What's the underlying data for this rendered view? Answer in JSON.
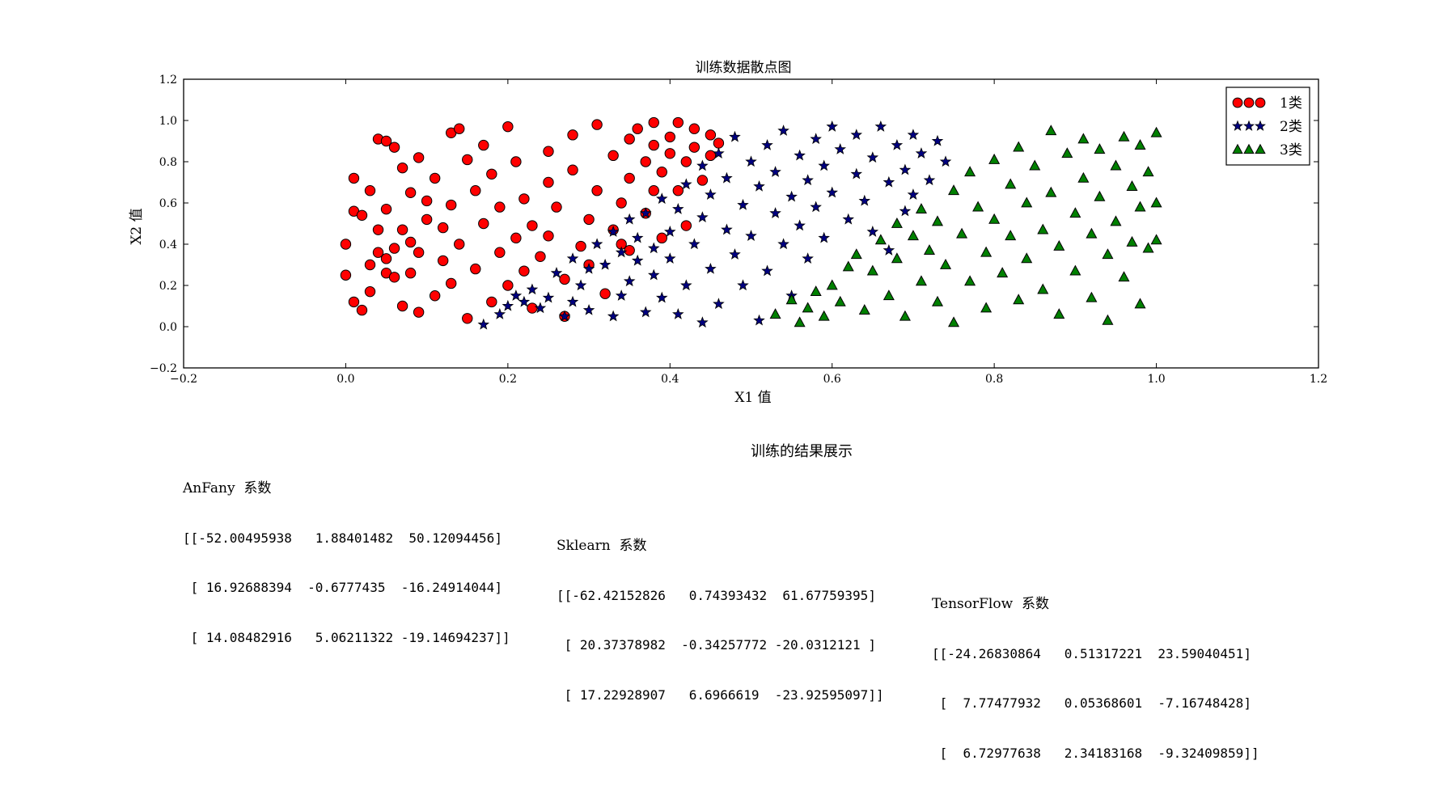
{
  "chart_data": {
    "type": "scatter",
    "title": "训练数据散点图",
    "xlabel": "X1 值",
    "ylabel": "X2 值",
    "xlim": [
      -0.2,
      1.2
    ],
    "ylim": [
      -0.2,
      1.2
    ],
    "xticks": [
      "−0.2",
      "0.0",
      "0.2",
      "0.4",
      "0.6",
      "0.8",
      "1.0",
      "1.2"
    ],
    "yticks": [
      "−0.2",
      "0.0",
      "0.2",
      "0.4",
      "0.6",
      "0.8",
      "1.0",
      "1.2"
    ],
    "xtick_values": [
      -0.2,
      0.0,
      0.2,
      0.4,
      0.6,
      0.8,
      1.0,
      1.2
    ],
    "ytick_values": [
      -0.2,
      0.0,
      0.2,
      0.4,
      0.6,
      0.8,
      1.0,
      1.2
    ],
    "legend_position": "top-right",
    "grid": false,
    "series": [
      {
        "name": "1类",
        "marker": "circle",
        "color": "#ff0000",
        "points": [
          [
            0.0,
            0.4
          ],
          [
            0.01,
            0.12
          ],
          [
            0.01,
            0.56
          ],
          [
            0.01,
            0.72
          ],
          [
            0.0,
            0.25
          ],
          [
            0.02,
            0.54
          ],
          [
            0.02,
            0.08
          ],
          [
            0.03,
            0.17
          ],
          [
            0.03,
            0.3
          ],
          [
            0.03,
            0.66
          ],
          [
            0.04,
            0.91
          ],
          [
            0.04,
            0.47
          ],
          [
            0.04,
            0.36
          ],
          [
            0.05,
            0.9
          ],
          [
            0.05,
            0.26
          ],
          [
            0.05,
            0.57
          ],
          [
            0.05,
            0.33
          ],
          [
            0.06,
            0.87
          ],
          [
            0.06,
            0.38
          ],
          [
            0.06,
            0.24
          ],
          [
            0.07,
            0.77
          ],
          [
            0.07,
            0.47
          ],
          [
            0.07,
            0.1
          ],
          [
            0.08,
            0.65
          ],
          [
            0.08,
            0.41
          ],
          [
            0.08,
            0.26
          ],
          [
            0.09,
            0.82
          ],
          [
            0.09,
            0.36
          ],
          [
            0.09,
            0.07
          ],
          [
            0.1,
            0.61
          ],
          [
            0.1,
            0.52
          ],
          [
            0.11,
            0.72
          ],
          [
            0.11,
            0.15
          ],
          [
            0.12,
            0.48
          ],
          [
            0.12,
            0.32
          ],
          [
            0.13,
            0.94
          ],
          [
            0.13,
            0.59
          ],
          [
            0.13,
            0.21
          ],
          [
            0.14,
            0.96
          ],
          [
            0.14,
            0.4
          ],
          [
            0.15,
            0.81
          ],
          [
            0.15,
            0.04
          ],
          [
            0.16,
            0.66
          ],
          [
            0.16,
            0.28
          ],
          [
            0.17,
            0.88
          ],
          [
            0.17,
            0.5
          ],
          [
            0.18,
            0.12
          ],
          [
            0.18,
            0.74
          ],
          [
            0.19,
            0.36
          ],
          [
            0.19,
            0.58
          ],
          [
            0.2,
            0.97
          ],
          [
            0.2,
            0.2
          ],
          [
            0.21,
            0.8
          ],
          [
            0.21,
            0.43
          ],
          [
            0.22,
            0.27
          ],
          [
            0.22,
            0.62
          ],
          [
            0.23,
            0.49
          ],
          [
            0.23,
            0.09
          ],
          [
            0.24,
            0.34
          ],
          [
            0.25,
            0.85
          ],
          [
            0.25,
            0.7
          ],
          [
            0.25,
            0.44
          ],
          [
            0.26,
            0.58
          ],
          [
            0.27,
            0.05
          ],
          [
            0.27,
            0.23
          ],
          [
            0.28,
            0.93
          ],
          [
            0.28,
            0.76
          ],
          [
            0.29,
            0.39
          ],
          [
            0.3,
            0.52
          ],
          [
            0.3,
            0.3
          ],
          [
            0.31,
            0.98
          ],
          [
            0.31,
            0.66
          ],
          [
            0.32,
            0.16
          ],
          [
            0.33,
            0.83
          ],
          [
            0.33,
            0.47
          ],
          [
            0.34,
            0.6
          ],
          [
            0.34,
            0.4
          ],
          [
            0.35,
            0.91
          ],
          [
            0.35,
            0.72
          ],
          [
            0.35,
            0.37
          ],
          [
            0.36,
            0.96
          ],
          [
            0.37,
            0.55
          ],
          [
            0.37,
            0.8
          ],
          [
            0.38,
            0.66
          ],
          [
            0.38,
            0.99
          ],
          [
            0.38,
            0.88
          ],
          [
            0.39,
            0.75
          ],
          [
            0.39,
            0.43
          ],
          [
            0.4,
            0.92
          ],
          [
            0.4,
            0.84
          ],
          [
            0.41,
            0.66
          ],
          [
            0.41,
            0.99
          ],
          [
            0.42,
            0.8
          ],
          [
            0.42,
            0.49
          ],
          [
            0.43,
            0.96
          ],
          [
            0.43,
            0.87
          ],
          [
            0.44,
            0.71
          ],
          [
            0.45,
            0.93
          ],
          [
            0.45,
            0.83
          ],
          [
            0.46,
            0.89
          ]
        ]
      },
      {
        "name": "2类",
        "marker": "star",
        "color": "#000080",
        "points": [
          [
            0.17,
            0.01
          ],
          [
            0.19,
            0.06
          ],
          [
            0.2,
            0.1
          ],
          [
            0.21,
            0.15
          ],
          [
            0.22,
            0.12
          ],
          [
            0.23,
            0.18
          ],
          [
            0.24,
            0.09
          ],
          [
            0.25,
            0.14
          ],
          [
            0.26,
            0.26
          ],
          [
            0.27,
            0.05
          ],
          [
            0.28,
            0.12
          ],
          [
            0.28,
            0.33
          ],
          [
            0.29,
            0.2
          ],
          [
            0.3,
            0.28
          ],
          [
            0.3,
            0.08
          ],
          [
            0.31,
            0.4
          ],
          [
            0.32,
            0.3
          ],
          [
            0.33,
            0.05
          ],
          [
            0.33,
            0.46
          ],
          [
            0.34,
            0.36
          ],
          [
            0.34,
            0.15
          ],
          [
            0.35,
            0.22
          ],
          [
            0.35,
            0.52
          ],
          [
            0.36,
            0.43
          ],
          [
            0.36,
            0.32
          ],
          [
            0.37,
            0.07
          ],
          [
            0.37,
            0.55
          ],
          [
            0.38,
            0.38
          ],
          [
            0.38,
            0.25
          ],
          [
            0.39,
            0.62
          ],
          [
            0.39,
            0.14
          ],
          [
            0.4,
            0.46
          ],
          [
            0.4,
            0.33
          ],
          [
            0.41,
            0.57
          ],
          [
            0.41,
            0.06
          ],
          [
            0.42,
            0.69
          ],
          [
            0.42,
            0.2
          ],
          [
            0.43,
            0.4
          ],
          [
            0.44,
            0.78
          ],
          [
            0.44,
            0.53
          ],
          [
            0.44,
            0.02
          ],
          [
            0.45,
            0.28
          ],
          [
            0.45,
            0.64
          ],
          [
            0.46,
            0.84
          ],
          [
            0.46,
            0.11
          ],
          [
            0.47,
            0.47
          ],
          [
            0.47,
            0.72
          ],
          [
            0.48,
            0.35
          ],
          [
            0.48,
            0.92
          ],
          [
            0.49,
            0.59
          ],
          [
            0.49,
            0.2
          ],
          [
            0.5,
            0.8
          ],
          [
            0.5,
            0.44
          ],
          [
            0.51,
            0.68
          ],
          [
            0.51,
            0.03
          ],
          [
            0.52,
            0.88
          ],
          [
            0.52,
            0.27
          ],
          [
            0.53,
            0.55
          ],
          [
            0.53,
            0.75
          ],
          [
            0.54,
            0.4
          ],
          [
            0.54,
            0.95
          ],
          [
            0.55,
            0.63
          ],
          [
            0.55,
            0.15
          ],
          [
            0.56,
            0.83
          ],
          [
            0.56,
            0.49
          ],
          [
            0.57,
            0.71
          ],
          [
            0.57,
            0.33
          ],
          [
            0.58,
            0.91
          ],
          [
            0.58,
            0.58
          ],
          [
            0.59,
            0.78
          ],
          [
            0.59,
            0.43
          ],
          [
            0.6,
            0.97
          ],
          [
            0.6,
            0.65
          ],
          [
            0.61,
            0.86
          ],
          [
            0.62,
            0.52
          ],
          [
            0.63,
            0.74
          ],
          [
            0.63,
            0.93
          ],
          [
            0.64,
            0.61
          ],
          [
            0.65,
            0.82
          ],
          [
            0.65,
            0.46
          ],
          [
            0.66,
            0.97
          ],
          [
            0.67,
            0.7
          ],
          [
            0.67,
            0.37
          ],
          [
            0.68,
            0.88
          ],
          [
            0.69,
            0.56
          ],
          [
            0.69,
            0.76
          ],
          [
            0.7,
            0.93
          ],
          [
            0.7,
            0.64
          ],
          [
            0.71,
            0.84
          ],
          [
            0.72,
            0.71
          ],
          [
            0.73,
            0.9
          ],
          [
            0.74,
            0.8
          ]
        ]
      },
      {
        "name": "3类",
        "marker": "triangle",
        "color": "#008000",
        "points": [
          [
            0.53,
            0.06
          ],
          [
            0.55,
            0.13
          ],
          [
            0.56,
            0.02
          ],
          [
            0.57,
            0.09
          ],
          [
            0.58,
            0.17
          ],
          [
            0.59,
            0.05
          ],
          [
            0.6,
            0.2
          ],
          [
            0.61,
            0.12
          ],
          [
            0.62,
            0.29
          ],
          [
            0.63,
            0.35
          ],
          [
            0.64,
            0.08
          ],
          [
            0.65,
            0.27
          ],
          [
            0.66,
            0.42
          ],
          [
            0.67,
            0.15
          ],
          [
            0.68,
            0.5
          ],
          [
            0.68,
            0.33
          ],
          [
            0.69,
            0.05
          ],
          [
            0.7,
            0.44
          ],
          [
            0.71,
            0.22
          ],
          [
            0.71,
            0.57
          ],
          [
            0.72,
            0.37
          ],
          [
            0.73,
            0.12
          ],
          [
            0.73,
            0.51
          ],
          [
            0.74,
            0.3
          ],
          [
            0.75,
            0.66
          ],
          [
            0.75,
            0.02
          ],
          [
            0.76,
            0.45
          ],
          [
            0.77,
            0.75
          ],
          [
            0.77,
            0.22
          ],
          [
            0.78,
            0.58
          ],
          [
            0.79,
            0.36
          ],
          [
            0.79,
            0.09
          ],
          [
            0.8,
            0.81
          ],
          [
            0.8,
            0.52
          ],
          [
            0.81,
            0.26
          ],
          [
            0.82,
            0.69
          ],
          [
            0.82,
            0.44
          ],
          [
            0.83,
            0.13
          ],
          [
            0.83,
            0.87
          ],
          [
            0.84,
            0.6
          ],
          [
            0.84,
            0.33
          ],
          [
            0.85,
            0.78
          ],
          [
            0.86,
            0.47
          ],
          [
            0.86,
            0.18
          ],
          [
            0.87,
            0.95
          ],
          [
            0.87,
            0.65
          ],
          [
            0.88,
            0.39
          ],
          [
            0.88,
            0.06
          ],
          [
            0.89,
            0.84
          ],
          [
            0.9,
            0.55
          ],
          [
            0.9,
            0.27
          ],
          [
            0.91,
            0.91
          ],
          [
            0.91,
            0.72
          ],
          [
            0.92,
            0.45
          ],
          [
            0.92,
            0.14
          ],
          [
            0.93,
            0.86
          ],
          [
            0.93,
            0.63
          ],
          [
            0.94,
            0.35
          ],
          [
            0.94,
            0.03
          ],
          [
            0.95,
            0.78
          ],
          [
            0.95,
            0.51
          ],
          [
            0.96,
            0.92
          ],
          [
            0.96,
            0.24
          ],
          [
            0.97,
            0.68
          ],
          [
            0.97,
            0.41
          ],
          [
            0.98,
            0.88
          ],
          [
            0.98,
            0.58
          ],
          [
            0.98,
            0.11
          ],
          [
            0.99,
            0.75
          ],
          [
            0.99,
            0.38
          ],
          [
            1.0,
            0.94
          ],
          [
            1.0,
            0.6
          ],
          [
            1.0,
            0.42
          ]
        ]
      }
    ]
  },
  "results": {
    "title": "训练的结果展示",
    "blocks": [
      {
        "title": "AnFany  系数",
        "lines": [
          "[[-52.00495938   1.88401482  50.12094456]",
          " [ 16.92688394  -0.6777435  -16.24914044]",
          " [ 14.08482916   5.06211322 -19.14694237]]"
        ]
      },
      {
        "title": "Sklearn  系数",
        "lines": [
          "[[-62.42152826   0.74393432  61.67759395]",
          " [ 20.37378982  -0.34257772 -20.0312121 ]",
          " [ 17.22928907   6.6966619  -23.92595097]]"
        ]
      },
      {
        "title": "TensorFlow  系数",
        "lines": [
          "[[-24.26830864   0.51317221  23.59040451]",
          " [  7.77477932   0.05368601  -7.16748428]",
          " [  6.72977638   2.34183168  -9.32409859]]"
        ]
      }
    ]
  }
}
